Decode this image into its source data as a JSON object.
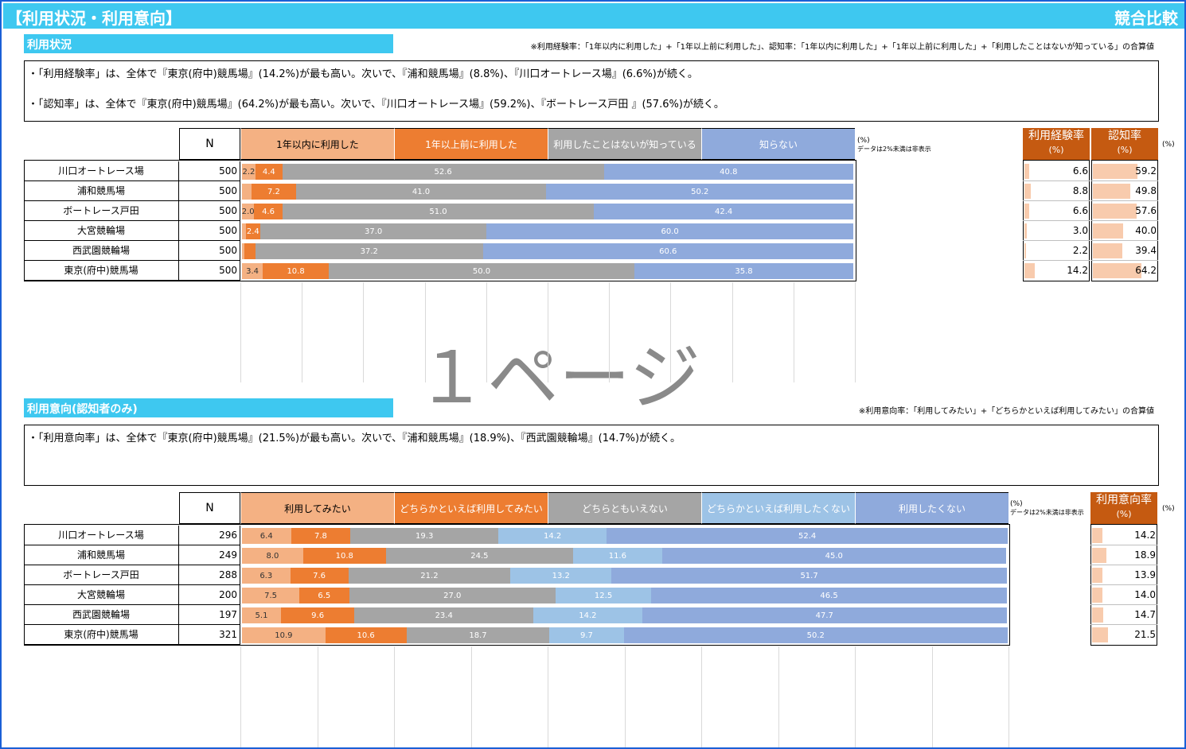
{
  "header": {
    "title": "【利用状況・利用意向】",
    "right": "競合比較"
  },
  "watermark": "１ページ",
  "section1": {
    "title": "利用状況",
    "note": "※利用経験率：「1年以内に利用した」+「1年以上前に利用した」、認知率：「1年以内に利用した」+「1年以上前に利用した」+「利用したことはないが知っている」の合算値",
    "comments": [
      "・「利用経験率」は、全体で『東京(府中)競馬場』(14.2%)が最も高い。次いで、『浦和競馬場』(8.8%)、『川口オートレース場』(6.6%)が続く。",
      "・「認知率」は、全体で『東京(府中)競馬場』(64.2%)が最も高い。次いで、『川口オートレース場』(59.2%)、『ボートレース戸田 』(57.6%)が続く。"
    ],
    "n_label": "N",
    "unit": "(%)",
    "unit_note": "データは2%未満は非表示",
    "rate_unit": "(%)",
    "rate_headers": [
      {
        "label": "利用経験率",
        "sub": "(%)"
      },
      {
        "label": "認知率",
        "sub": "(%)"
      }
    ]
  },
  "section2": {
    "title": "利用意向(認知者のみ)",
    "note": "※利用意向率：「利用してみたい」+「どちらかといえば利用してみたい」の合算値",
    "comments": [
      "・「利用意向率」は、全体で『東京(府中)競馬場』(21.5%)が最も高い。次いで、『浦和競馬場』(18.9%)、『西武園競輪場』(14.7%)が続く。"
    ],
    "n_label": "N",
    "unit": "(%)",
    "unit_note": "データは2%未満は非表示",
    "rate_unit": "(%)",
    "rate_headers": [
      {
        "label": "利用意向率",
        "sub": "(%)"
      }
    ]
  },
  "colors": {
    "c1": "#f4b183",
    "c2": "#ed7d31",
    "c3": "#a5a5a5",
    "c4": "#8faadc",
    "d1": "#f4b183",
    "d2": "#ed7d31",
    "d3": "#a5a5a5",
    "d4": "#9dc3e6",
    "d5": "#8faadc",
    "rate_bar": "#f8cbad"
  },
  "chart_data": [
    {
      "type": "bar",
      "orientation": "horizontal-stacked-100",
      "categories": [
        "川口オートレース場",
        "浦和競馬場",
        "ボートレース戸田",
        "大宮競輪場",
        "西武園競輪場",
        "東京(府中)競馬場"
      ],
      "n": [
        500,
        500,
        500,
        500,
        500,
        500
      ],
      "series": [
        {
          "name": "1年以内に利用した",
          "values": [
            2.2,
            1.6,
            2.0,
            0.6,
            0.4,
            3.4
          ]
        },
        {
          "name": "1年以上前に利用した",
          "values": [
            4.4,
            7.2,
            4.6,
            2.4,
            1.8,
            10.8
          ]
        },
        {
          "name": "利用したことはないが知っている",
          "values": [
            52.6,
            41.0,
            51.0,
            37.0,
            37.2,
            50.0
          ]
        },
        {
          "name": "知らない",
          "values": [
            40.8,
            50.2,
            42.4,
            60.0,
            60.6,
            35.8
          ]
        }
      ],
      "rates": [
        {
          "name": "利用経験率",
          "values": [
            6.6,
            8.8,
            6.6,
            3.0,
            2.2,
            14.2
          ]
        },
        {
          "name": "認知率",
          "values": [
            59.2,
            49.8,
            57.6,
            40.0,
            39.4,
            64.2
          ]
        }
      ],
      "hide_label_below": 2
    },
    {
      "type": "bar",
      "orientation": "horizontal-stacked-100",
      "categories": [
        "川口オートレース場",
        "浦和競馬場",
        "ボートレース戸田",
        "大宮競輪場",
        "西武園競輪場",
        "東京(府中)競馬場"
      ],
      "n": [
        296,
        249,
        288,
        200,
        197,
        321
      ],
      "series": [
        {
          "name": "利用してみたい",
          "values": [
            6.4,
            8.0,
            6.3,
            7.5,
            5.1,
            10.9
          ]
        },
        {
          "name": "どちらかといえば利用してみたい",
          "values": [
            7.8,
            10.8,
            7.6,
            6.5,
            9.6,
            10.6
          ]
        },
        {
          "name": "どちらともいえない",
          "values": [
            19.3,
            24.5,
            21.2,
            27.0,
            23.4,
            18.7
          ]
        },
        {
          "name": "どちらかといえば利用したくない",
          "values": [
            14.2,
            11.6,
            13.2,
            12.5,
            14.2,
            9.7
          ]
        },
        {
          "name": "利用したくない",
          "values": [
            52.4,
            45.0,
            51.7,
            46.5,
            47.7,
            50.2
          ]
        }
      ],
      "rates": [
        {
          "name": "利用意向率",
          "values": [
            14.2,
            18.9,
            13.9,
            14.0,
            14.7,
            21.5
          ]
        }
      ],
      "hide_label_below": 2
    }
  ]
}
